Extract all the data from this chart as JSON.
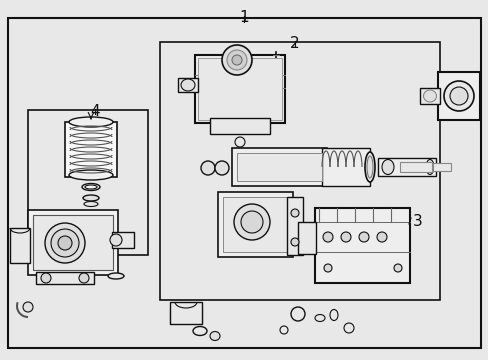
{
  "fig_bg": "#e8e8e8",
  "part_line_color": "#111111",
  "part_fill_color": "#ffffff",
  "label1": "1",
  "label2": "2",
  "label3": "3",
  "label4": "4"
}
